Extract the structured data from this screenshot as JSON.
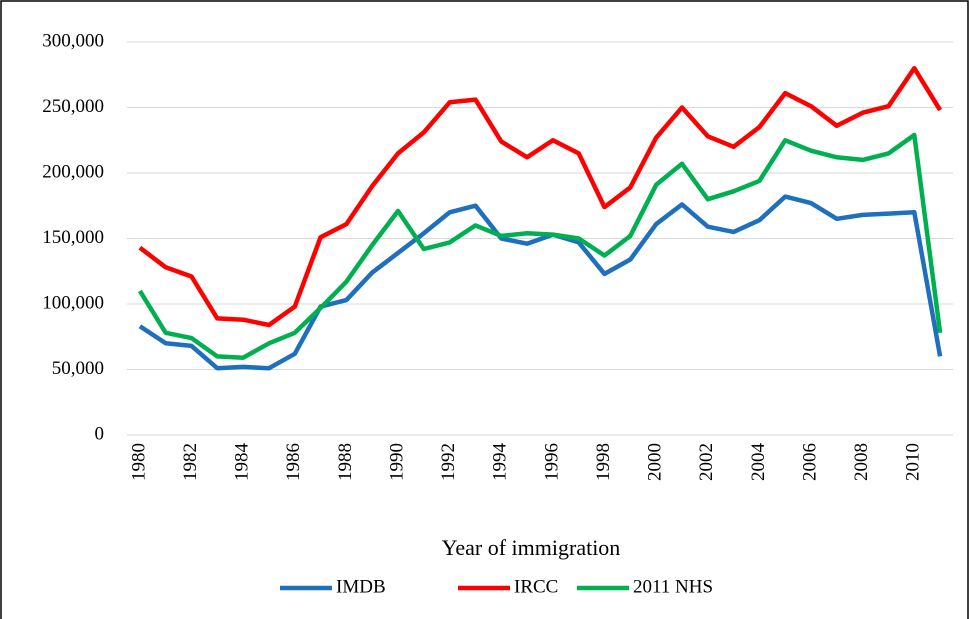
{
  "chart_data": {
    "type": "line",
    "xlabel": "Year of immigration",
    "categories": [
      "1980",
      null,
      "1982",
      null,
      "1984",
      null,
      "1986",
      null,
      "1988",
      null,
      "1990",
      null,
      "1992",
      null,
      "1994",
      null,
      "1996",
      null,
      "1998",
      null,
      "2000",
      null,
      "2002",
      null,
      "2004",
      null,
      "2006",
      null,
      "2008",
      null,
      "2010",
      null
    ],
    "series": [
      {
        "name": "IMDB",
        "color": "#1f6fbf",
        "values": [
          83000,
          70000,
          68000,
          51000,
          52000,
          51000,
          62000,
          98000,
          103000,
          124000,
          139000,
          154000,
          170000,
          175000,
          150000,
          146000,
          153000,
          147000,
          123000,
          134000,
          161000,
          176000,
          159000,
          155000,
          164000,
          182000,
          177000,
          165000,
          168000,
          169000,
          170000,
          60000
        ]
      },
      {
        "name": "IRCC",
        "color": "#ff0000",
        "values": [
          143000,
          128000,
          121000,
          89000,
          88000,
          84000,
          98000,
          151000,
          161000,
          190000,
          215000,
          231000,
          254000,
          256000,
          224000,
          212000,
          225000,
          215000,
          174000,
          189000,
          227000,
          250000,
          228000,
          220000,
          235000,
          261000,
          251000,
          236000,
          246000,
          251000,
          280000,
          248000
        ]
      },
      {
        "name": "2011 NHS",
        "color": "#00b050",
        "values": [
          110000,
          78000,
          74000,
          60000,
          59000,
          70000,
          78000,
          97000,
          117000,
          145000,
          171000,
          142000,
          147000,
          160000,
          152000,
          154000,
          153000,
          150000,
          137000,
          152000,
          191000,
          207000,
          180000,
          186000,
          194000,
          225000,
          217000,
          212000,
          210000,
          215000,
          229000,
          78000
        ]
      }
    ],
    "ylim": [
      0,
      300000
    ],
    "yticks": [
      0,
      {
        "value": 50000,
        "label": "50,000"
      },
      {
        "value": 100000,
        "label": "100,000"
      },
      {
        "value": 150000,
        "label": "150,000"
      },
      {
        "value": 200000,
        "label": "200,000"
      },
      {
        "value": 250000,
        "label": "250,000"
      },
      {
        "value": 300000,
        "label": "300,000"
      }
    ],
    "grid": true,
    "legend": "bottom"
  }
}
